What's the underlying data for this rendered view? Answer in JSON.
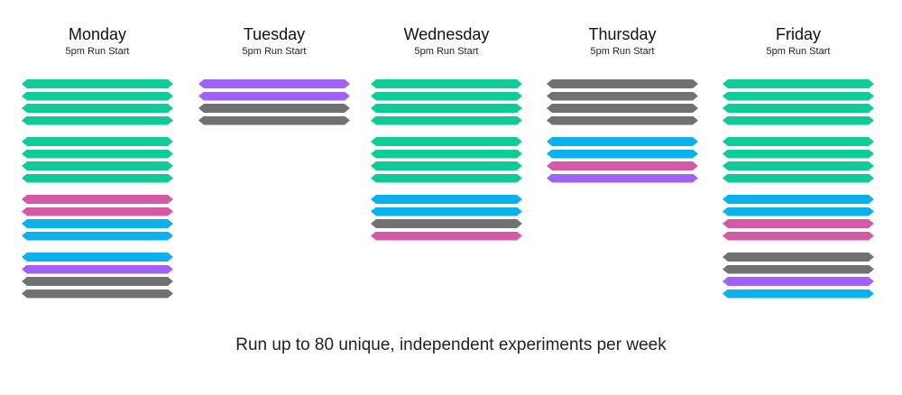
{
  "colors": {
    "green": "#0fcb98",
    "purple": "#a061f5",
    "gray": "#717171",
    "blue": "#0ab1ec",
    "magenta": "#d659a8"
  },
  "days": [
    {
      "name": "Monday",
      "subtitle": "5pm Run Start",
      "groups": [
        [
          "green",
          "green",
          "green",
          "green"
        ],
        [
          "green",
          "green",
          "green",
          "green"
        ],
        [
          "magenta",
          "magenta",
          "blue",
          "blue"
        ],
        [
          "blue",
          "purple",
          "gray",
          "gray"
        ]
      ]
    },
    {
      "name": "Tuesday",
      "subtitle": "5pm Run Start",
      "groups": [
        [
          "purple",
          "purple",
          "gray",
          "gray"
        ]
      ]
    },
    {
      "name": "Wednesday",
      "subtitle": "5pm Run Start",
      "groups": [
        [
          "green",
          "green",
          "green",
          "green"
        ],
        [
          "green",
          "green",
          "green",
          "green"
        ],
        [
          "blue",
          "blue",
          "gray",
          "magenta"
        ]
      ]
    },
    {
      "name": "Thursday",
      "subtitle": "5pm Run Start",
      "groups": [
        [
          "gray",
          "gray",
          "gray",
          "gray"
        ],
        [
          "blue",
          "blue",
          "magenta",
          "purple"
        ]
      ]
    },
    {
      "name": "Friday",
      "subtitle": "5pm Run Start",
      "groups": [
        [
          "green",
          "green",
          "green",
          "green"
        ],
        [
          "green",
          "green",
          "green",
          "green"
        ],
        [
          "blue",
          "blue",
          "magenta",
          "magenta"
        ],
        [
          "gray",
          "gray",
          "purple",
          "blue"
        ]
      ]
    }
  ],
  "caption": "Run up to 80 unique, independent experiments per week"
}
